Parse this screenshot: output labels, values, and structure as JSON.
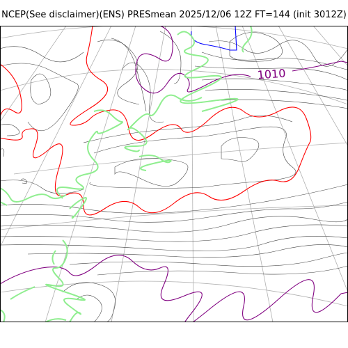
{
  "title": "NCEP(See disclaimer)(ENS) PRESmean 2025/12/06 12Z FT=144 (init 3012Z)",
  "isobar_label": "1010",
  "colors": {
    "isobar": "#444444",
    "isobar_1010": "#800080",
    "isobar_red": "#ff0000",
    "isobar_blue": "#0000ff",
    "coastline": "#90ee90",
    "graticule": "#b0b0b0",
    "frame": "#000000"
  }
}
